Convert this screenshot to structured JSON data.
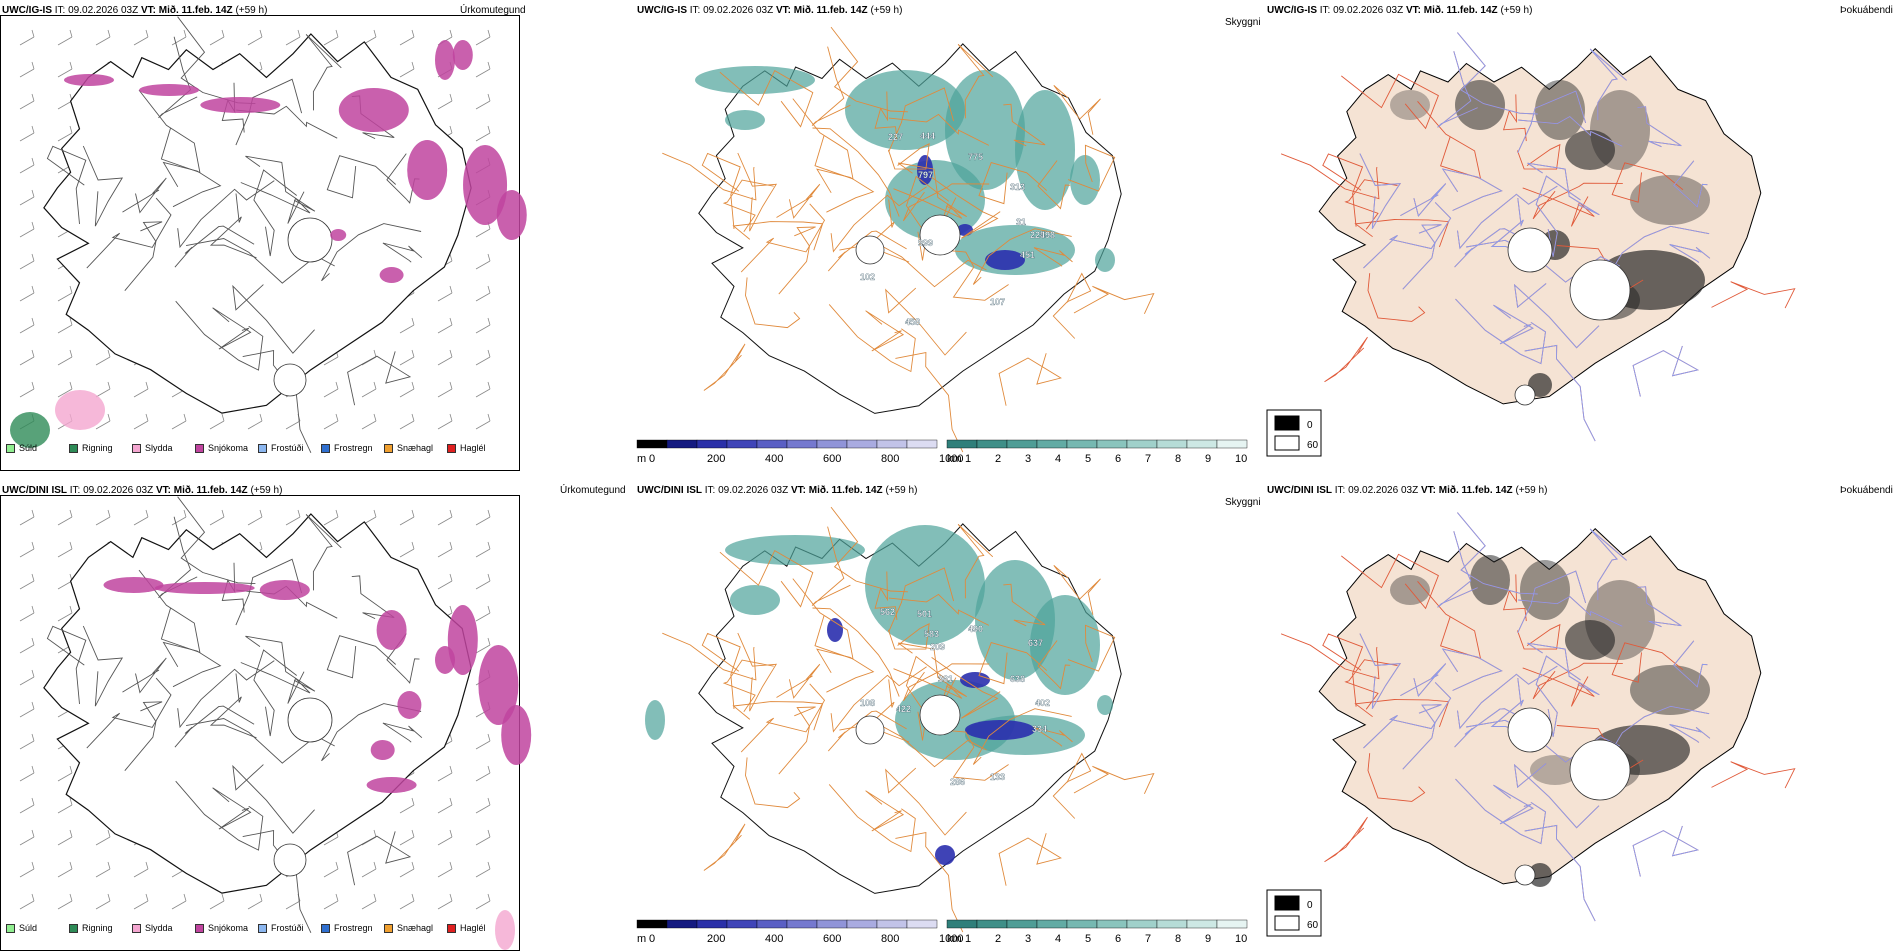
{
  "colors": {
    "rain": "#2e8b57",
    "drizzle": "#90ee90",
    "sleet": "#f4a6d0",
    "snow": "#c0449f",
    "fzdrizzle": "#8cb7f0",
    "fzrain": "#2f6fcf",
    "graupel": "#f0a030",
    "hail": "#e02020",
    "cloud_teal": "#4da39a",
    "ceiling_blue": "#2a2fae",
    "road": "#e08a3c",
    "land": "#f5e3d4"
  },
  "top": {
    "precip": {
      "model": "UWC/IG-IS",
      "it_label": "IT:",
      "it_value": "09.02.2026 03Z",
      "vt_label": "VT:",
      "vt_value": "Mið. 11.feb. 14Z",
      "lead": "(+59 h)",
      "kind": "Úrkomutegund"
    },
    "cloud": {
      "model": "UWC/IG-IS",
      "it_label": "IT:",
      "it_value": "09.02.2026 03Z",
      "vt_label": "VT:",
      "vt_value": "Mið. 11.feb. 14Z",
      "lead": "(+59 h)",
      "kind": "Skyggni"
    },
    "fog": {
      "model": "UWC/IG-IS",
      "it_label": "IT:",
      "it_value": "09.02.2026 03Z",
      "vt_label": "VT:",
      "vt_value": "Mið. 11.feb. 14Z",
      "lead": "(+59 h)",
      "kind": "Þokuábendi"
    },
    "numbers": [
      {
        "v": "227"
      },
      {
        "v": "444"
      },
      {
        "v": "775"
      },
      {
        "v": "797"
      },
      {
        "v": "313"
      },
      {
        "v": "999"
      },
      {
        "v": "31"
      },
      {
        "v": "225"
      },
      {
        "v": "498"
      },
      {
        "v": "451"
      },
      {
        "v": "102"
      },
      {
        "v": "107"
      },
      {
        "v": "458"
      }
    ]
  },
  "bottom": {
    "precip": {
      "model": "UWC/DINI ISL",
      "it_label": "IT:",
      "it_value": "09.02.2026 03Z",
      "vt_label": "VT:",
      "vt_value": "Mið. 11.feb. 14Z",
      "lead": "(+59 h)",
      "kind": "Úrkomutegund"
    },
    "cloud": {
      "model": "UWC/DINI ISL",
      "it_label": "IT:",
      "it_value": "09.02.2026 03Z",
      "vt_label": "VT:",
      "vt_value": "Mið. 11.feb. 14Z",
      "lead": "(+59 h)",
      "kind": "Skyggni"
    },
    "fog": {
      "model": "UWC/DINI ISL",
      "it_label": "IT:",
      "it_value": "09.02.2026 03Z",
      "vt_label": "VT:",
      "vt_value": "Mið. 11.feb. 14Z",
      "lead": "(+59 h)",
      "kind": "Þokuábendi"
    },
    "numbers": [
      {
        "v": "562"
      },
      {
        "v": "501"
      },
      {
        "v": "583"
      },
      {
        "v": "490"
      },
      {
        "v": "209"
      },
      {
        "v": "637"
      },
      {
        "v": "361"
      },
      {
        "v": "638"
      },
      {
        "v": "402"
      },
      {
        "v": "422"
      },
      {
        "v": "334"
      },
      {
        "v": "108"
      },
      {
        "v": "133"
      },
      {
        "v": "286"
      }
    ]
  },
  "precip_legend": [
    {
      "label": "Súld",
      "color": "#90ee90"
    },
    {
      "label": "Rigning",
      "color": "#2e8b57"
    },
    {
      "label": "Slydda",
      "color": "#f4a6d0"
    },
    {
      "label": "Snjókoma",
      "color": "#c0449f"
    },
    {
      "label": "Frostúði",
      "color": "#8cb7f0"
    },
    {
      "label": "Frostregn",
      "color": "#2f6fcf"
    },
    {
      "label": "Snæhagl",
      "color": "#f0a030"
    },
    {
      "label": "Haglél",
      "color": "#e02020"
    }
  ],
  "ceiling_bar": {
    "unit": "m",
    "ticks": [
      "0",
      "200",
      "400",
      "600",
      "800",
      "1000"
    ],
    "colors": [
      "#000000",
      "#141a80",
      "#2a30a8",
      "#4045b8",
      "#5a5fc4",
      "#7579cf",
      "#9094d8",
      "#a9abe0",
      "#c2c3e8",
      "#dcdcf2"
    ]
  },
  "visibility_bar": {
    "unit": "km",
    "ticks": [
      "1",
      "2",
      "3",
      "4",
      "5",
      "6",
      "7",
      "8",
      "9",
      "10"
    ],
    "colors": [
      "#2f7f7a",
      "#3f8f88",
      "#4f9d96",
      "#62aba4",
      "#76b8b1",
      "#8ac4bd",
      "#a0d0ca",
      "#b6dcd7",
      "#cde8e4",
      "#e6f4f2"
    ]
  },
  "fog_legend": [
    {
      "label": "0"
    },
    {
      "label": "60"
    }
  ]
}
